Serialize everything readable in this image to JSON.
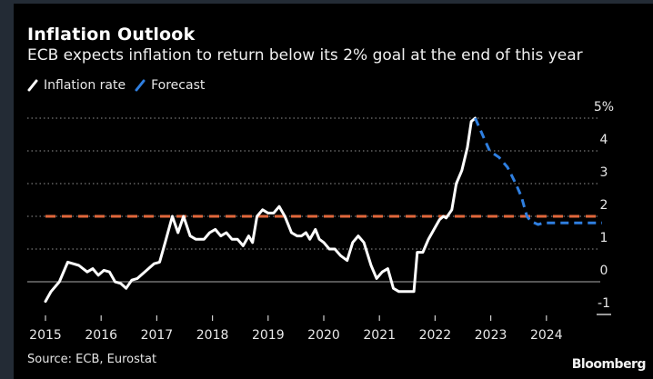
{
  "header": {
    "title": "Inflation Outlook",
    "subtitle": "ECB expects inflation to return below its 2% goal at the end of this year"
  },
  "footer": {
    "source": "Source: ECB, Eurostat",
    "brand": "Bloomberg"
  },
  "colors": {
    "background": "#000000",
    "frame": "#232b35",
    "inflation": "#ffffff",
    "forecast": "#2f7fe0",
    "target": "#e0673c",
    "grid": "#777777"
  },
  "chart_data": {
    "type": "line",
    "title": "Inflation Outlook",
    "subtitle": "ECB expects inflation to return below its 2% goal at the end of this year",
    "xlabel": "",
    "ylabel": "",
    "xlim": [
      2015,
      2025
    ],
    "ylim": [
      -1,
      5
    ],
    "x_ticks": [
      "2015",
      "2016",
      "2017",
      "2018",
      "2019",
      "2020",
      "2021",
      "2022",
      "2023",
      "2024"
    ],
    "y_ticks": [
      "5%",
      "4",
      "3",
      "2",
      "1",
      "0",
      "-1"
    ],
    "y_tick_values": [
      5,
      4,
      3,
      2,
      1,
      0,
      -1
    ],
    "grid": true,
    "legend": {
      "placement": "top-left",
      "entries": [
        "Inflation rate",
        "Forecast"
      ]
    },
    "series": [
      {
        "name": "Inflation rate",
        "style": "solid",
        "points": [
          [
            2015.0,
            -0.6
          ],
          [
            2015.1,
            -0.3
          ],
          [
            2015.25,
            0.0
          ],
          [
            2015.4,
            0.6
          ],
          [
            2015.5,
            0.55
          ],
          [
            2015.6,
            0.5
          ],
          [
            2015.75,
            0.3
          ],
          [
            2015.85,
            0.4
          ],
          [
            2015.95,
            0.2
          ],
          [
            2016.05,
            0.35
          ],
          [
            2016.15,
            0.3
          ],
          [
            2016.25,
            0.0
          ],
          [
            2016.35,
            -0.05
          ],
          [
            2016.45,
            -0.2
          ],
          [
            2016.55,
            0.05
          ],
          [
            2016.65,
            0.1
          ],
          [
            2016.75,
            0.25
          ],
          [
            2016.85,
            0.4
          ],
          [
            2016.95,
            0.55
          ],
          [
            2017.05,
            0.6
          ],
          [
            2017.15,
            1.2
          ],
          [
            2017.28,
            2.0
          ],
          [
            2017.38,
            1.5
          ],
          [
            2017.48,
            2.0
          ],
          [
            2017.6,
            1.4
          ],
          [
            2017.7,
            1.3
          ],
          [
            2017.85,
            1.3
          ],
          [
            2017.95,
            1.5
          ],
          [
            2018.05,
            1.6
          ],
          [
            2018.15,
            1.4
          ],
          [
            2018.25,
            1.5
          ],
          [
            2018.35,
            1.3
          ],
          [
            2018.45,
            1.3
          ],
          [
            2018.55,
            1.1
          ],
          [
            2018.65,
            1.4
          ],
          [
            2018.72,
            1.2
          ],
          [
            2018.8,
            2.0
          ],
          [
            2018.9,
            2.2
          ],
          [
            2019.0,
            2.1
          ],
          [
            2019.1,
            2.1
          ],
          [
            2019.2,
            2.3
          ],
          [
            2019.3,
            2.0
          ],
          [
            2019.42,
            1.5
          ],
          [
            2019.52,
            1.4
          ],
          [
            2019.6,
            1.4
          ],
          [
            2019.68,
            1.5
          ],
          [
            2019.75,
            1.3
          ],
          [
            2019.85,
            1.6
          ],
          [
            2019.92,
            1.3
          ],
          [
            2020.0,
            1.2
          ],
          [
            2020.1,
            1.0
          ],
          [
            2020.2,
            1.0
          ],
          [
            2020.3,
            0.8
          ],
          [
            2020.42,
            0.65
          ],
          [
            2020.52,
            1.2
          ],
          [
            2020.62,
            1.4
          ],
          [
            2020.72,
            1.2
          ],
          [
            2020.85,
            0.5
          ],
          [
            2020.95,
            0.1
          ],
          [
            2021.05,
            0.3
          ],
          [
            2021.15,
            0.4
          ],
          [
            2021.25,
            -0.2
          ],
          [
            2021.35,
            -0.3
          ],
          [
            2021.5,
            -0.3
          ],
          [
            2021.62,
            -0.3
          ],
          [
            2021.68,
            0.9
          ],
          [
            2021.78,
            0.9
          ],
          [
            2021.88,
            1.3
          ],
          [
            2021.98,
            1.6
          ],
          [
            2022.08,
            1.9
          ],
          [
            2022.15,
            2.0
          ],
          [
            2022.2,
            1.95
          ],
          [
            2022.3,
            2.2
          ],
          [
            2022.38,
            3.0
          ],
          [
            2022.48,
            3.4
          ],
          [
            2022.58,
            4.1
          ],
          [
            2022.65,
            4.9
          ],
          [
            2022.72,
            5.0
          ]
        ]
      },
      {
        "name": "Forecast",
        "style": "dashed",
        "points": [
          [
            2022.72,
            5.0
          ],
          [
            2022.85,
            4.5
          ],
          [
            2022.98,
            4.0
          ],
          [
            2023.15,
            3.8
          ],
          [
            2023.3,
            3.5
          ],
          [
            2023.45,
            3.0
          ],
          [
            2023.55,
            2.6
          ],
          [
            2023.65,
            2.0
          ],
          [
            2023.72,
            1.85
          ],
          [
            2023.85,
            1.75
          ],
          [
            2023.95,
            1.8
          ],
          [
            2024.1,
            1.8
          ],
          [
            2024.5,
            1.8
          ],
          [
            2025.0,
            1.8
          ]
        ]
      },
      {
        "name": "2% target",
        "style": "dashed",
        "points": [
          [
            2015.0,
            2.0
          ],
          [
            2025.0,
            2.0
          ]
        ]
      }
    ]
  }
}
